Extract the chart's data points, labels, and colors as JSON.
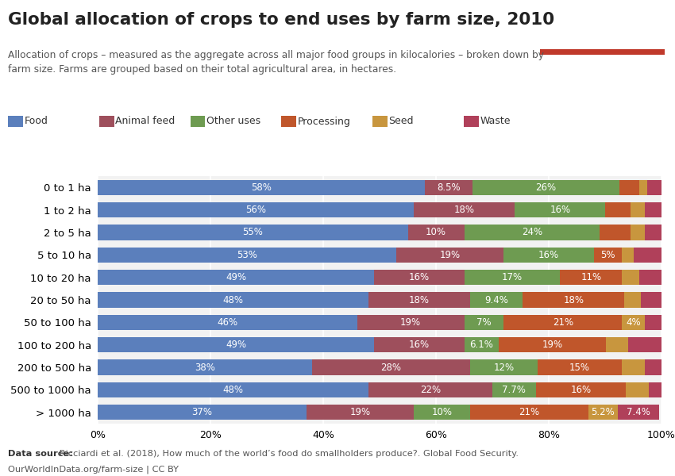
{
  "title": "Global allocation of crops to end uses by farm size, 2010",
  "subtitle": "Allocation of crops – measured as the aggregate across all major food groups in kilocalories – broken down by\nfarm size. Farms are grouped based on their total agricultural area, in hectares.",
  "categories": [
    "0 to 1 ha",
    "1 to 2 ha",
    "2 to 5 ha",
    "5 to 10 ha",
    "10 to 20 ha",
    "20 to 50 ha",
    "50 to 100 ha",
    "100 to 200 ha",
    "200 to 500 ha",
    "500 to 1000 ha",
    "> 1000 ha"
  ],
  "series": {
    "Food": [
      58,
      56,
      55,
      53,
      49,
      48,
      46,
      49,
      38,
      48,
      37
    ],
    "Animal feed": [
      8.5,
      18,
      10,
      19,
      16,
      18,
      19,
      16,
      28,
      22,
      19
    ],
    "Other uses": [
      26,
      16,
      24,
      16,
      17,
      9.4,
      7,
      6.1,
      12,
      7.7,
      10
    ],
    "Processing": [
      3.5,
      4.5,
      5.5,
      5,
      11,
      18,
      21,
      19,
      15,
      16,
      21
    ],
    "Seed": [
      1.5,
      2.5,
      2.5,
      2,
      3,
      3,
      4,
      4,
      4,
      4,
      5.2
    ],
    "Waste": [
      2.5,
      3,
      3,
      5,
      4,
      3.6,
      3,
      5.9,
      3,
      2.3,
      7.4
    ]
  },
  "colors": {
    "Food": "#5b7fbc",
    "Animal feed": "#9e4f5c",
    "Other uses": "#6e9b51",
    "Processing": "#c0562b",
    "Seed": "#c8963e",
    "Waste": "#b0405a"
  },
  "labels": {
    "Food": [
      "58%",
      "56%",
      "55%",
      "53%",
      "49%",
      "48%",
      "46%",
      "49%",
      "38%",
      "48%",
      "37%"
    ],
    "Animal feed": [
      "8.5%",
      "18%",
      "10%",
      "19%",
      "16%",
      "18%",
      "19%",
      "16%",
      "28%",
      "22%",
      "19%"
    ],
    "Other uses": [
      "26%",
      "16%",
      "24%",
      "16%",
      "17%",
      "9.4%",
      "7%",
      "6.1%",
      "12%",
      "7.7%",
      "10%"
    ],
    "Processing": [
      "",
      "",
      "",
      "5%",
      "11%",
      "18%",
      "21%",
      "19%",
      "15%",
      "16%",
      "21%"
    ],
    "Seed": [
      "",
      "",
      "",
      "",
      "",
      "",
      "4%",
      "",
      "",
      "",
      "5.2%"
    ],
    "Waste": [
      "",
      "",
      "",
      "",
      "",
      "",
      "",
      "",
      "",
      "",
      "7.4%"
    ]
  },
  "datasource_bold": "Data source:",
  "datasource_rest": " Ricciardi et al. (2018), How much of the world’s food do smallholders produce?. Global Food Security.",
  "datasource_line2": "OurWorldInData.org/farm-size | CC BY",
  "background_color": "#ffffff",
  "plot_bg_color": "#f2f2f2",
  "bar_height": 0.68,
  "label_fontsize": 8.5,
  "legend_order": [
    "Food",
    "Animal feed",
    "Other uses",
    "Processing",
    "Seed",
    "Waste"
  ],
  "logo_bg": "#1a3a5c",
  "logo_red": "#c0392b"
}
